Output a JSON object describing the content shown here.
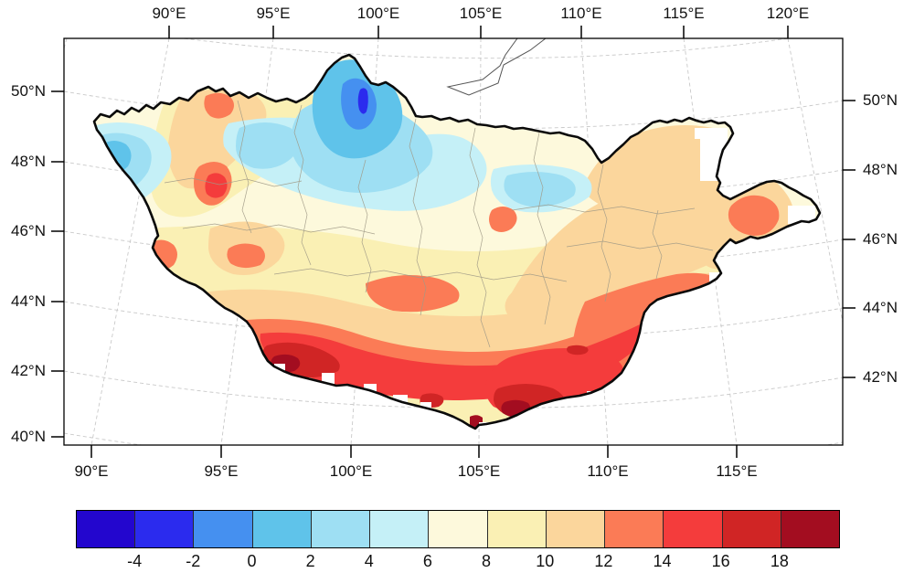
{
  "axes": {
    "top": {
      "labels": [
        "90°E",
        "95°E",
        "100°E",
        "105°E",
        "110°E",
        "115°E",
        "120°E"
      ]
    },
    "bottom": {
      "labels": [
        "90°E",
        "95°E",
        "100°E",
        "105°E",
        "110°E",
        "115°E"
      ]
    },
    "left": {
      "labels": [
        "50°N",
        "48°N",
        "46°N",
        "44°N",
        "42°N",
        "40°N"
      ]
    },
    "right": {
      "labels": [
        "50°N",
        "48°N",
        "46°N",
        "44°N",
        "42°N"
      ]
    }
  },
  "colorbar": {
    "tick_labels": [
      "-4",
      "-2",
      "0",
      "2",
      "4",
      "6",
      "8",
      "10",
      "12",
      "14",
      "16",
      "18"
    ],
    "colors": [
      "#2306CE",
      "#2B2BEE",
      "#4590F0",
      "#5FC3EA",
      "#9EDFF3",
      "#C5F0F7",
      "#FDF9DC",
      "#FAF0B4",
      "#FBD69C",
      "#FB7B56",
      "#F43C3C",
      "#D02525",
      "#A30D20"
    ],
    "n_cells": 13
  },
  "chart_data": {
    "type": "filled-contour-map",
    "region_depicted": "Mongolia (thick black national boundary) with filled contour field",
    "projection_hint": "conic projection: meridians fan outward toward the bottom, parallels gently curved, dashed gray graticule",
    "x_ticks_top": [
      "90°E",
      "95°E",
      "100°E",
      "105°E",
      "110°E",
      "115°E",
      "120°E"
    ],
    "x_ticks_bottom": [
      "90°E",
      "95°E",
      "100°E",
      "105°E",
      "110°E",
      "115°E"
    ],
    "y_ticks_left": [
      "50°N",
      "48°N",
      "46°N",
      "44°N",
      "42°N",
      "40°N"
    ],
    "y_ticks_right": [
      "50°N",
      "48°N",
      "46°N",
      "44°N",
      "42°N"
    ],
    "colorbar_boundaries": [
      -4,
      -2,
      0,
      2,
      4,
      6,
      8,
      10,
      12,
      14,
      16,
      18
    ],
    "colorbar_colors": [
      "#2306CE",
      "#2B2BEE",
      "#4590F0",
      "#5FC3EA",
      "#9EDFF3",
      "#C5F0F7",
      "#FDF9DC",
      "#FAF0B4",
      "#FBD69C",
      "#FB7B56",
      "#F43C3C",
      "#D02525",
      "#A30D20"
    ],
    "legend_position": "bottom horizontal labelbar",
    "grid": "dashed light-gray graticule visible outside the filled region; thin gray province boundaries inside; small lake outline (Baikal) at top center-right; white no-data grid cells along the southern border",
    "pattern_summary": "Values increase from north to south: blues (-4 to 4) over the north-central bump near 100E/50-52N and patches in the northwest; cream/tan (6-12) across the center and east; oranges and reds (12 to >18) in a broad band along the southern border with darkest reds near 97-100E and 105-109E around 41-43N; an orange patch (12-14) on the eastern arm near 113E/46.5N; scattered warm spots in the western mountains."
  }
}
